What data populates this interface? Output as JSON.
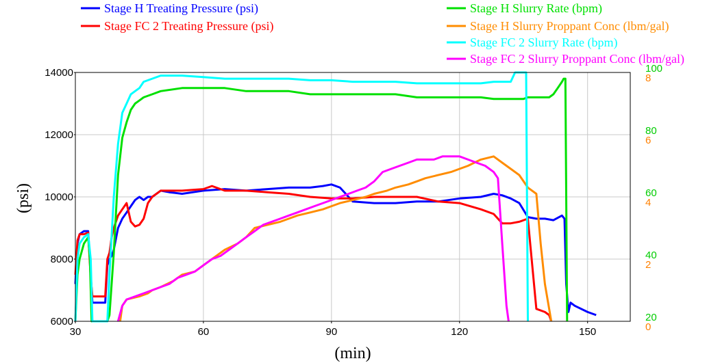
{
  "chart_data": {
    "type": "line",
    "title": "",
    "xlabel": "(min)",
    "ylabel": "(psi)",
    "xlim": [
      30,
      160
    ],
    "ylim": [
      6000,
      14000
    ],
    "grid": true,
    "legend_placement": "top",
    "x_ticks": [
      "30",
      "60",
      "90",
      "120",
      "150"
    ],
    "y_ticks": [
      "6000",
      "8000",
      "10000",
      "12000",
      "14000"
    ],
    "rate_axis": {
      "range": [
        20,
        100
      ],
      "ticks": [
        "20",
        "40",
        "60",
        "80",
        "100"
      ],
      "color": "#00cc00"
    },
    "conc_axis": {
      "range": [
        0,
        8
      ],
      "ticks": [
        "0",
        "2",
        "4",
        "6",
        "8"
      ],
      "color": "#ff8000"
    },
    "series": [
      {
        "name": "Stage H Treating Pressure (psi)",
        "color": "#0000ff",
        "axis": "pressure",
        "x": [
          30,
          30.5,
          31,
          32,
          33,
          33.6,
          34,
          35,
          36,
          37,
          37.5,
          38,
          38.5,
          39,
          40,
          41,
          42,
          43,
          44,
          45,
          46,
          47,
          48,
          50,
          52,
          55,
          60,
          65,
          70,
          75,
          80,
          85,
          88,
          90,
          92,
          95,
          100,
          105,
          110,
          115,
          120,
          125,
          128,
          130,
          132,
          134,
          136,
          138,
          140,
          142,
          144,
          144.6,
          145,
          145.5,
          146,
          147,
          150,
          152
        ],
        "y": [
          7200,
          8500,
          8800,
          8900,
          8900,
          7500,
          6600,
          6600,
          6600,
          6600,
          7800,
          8000,
          8100,
          8300,
          9000,
          9300,
          9500,
          9700,
          9900,
          10000,
          9900,
          10000,
          10000,
          10200,
          10150,
          10100,
          10200,
          10250,
          10200,
          10250,
          10300,
          10300,
          10350,
          10400,
          10300,
          9850,
          9800,
          9800,
          9850,
          9850,
          9950,
          10000,
          10100,
          10050,
          9950,
          9800,
          9350,
          9300,
          9300,
          9250,
          9400,
          9300,
          7200,
          6300,
          6600,
          6500,
          6300,
          6200
        ]
      },
      {
        "name": "Stage FC 2 Treating Pressure (psi)",
        "color": "#ff0000",
        "axis": "pressure",
        "x": [
          30,
          30.5,
          31,
          32,
          33,
          33.6,
          34,
          35,
          36,
          37,
          37.5,
          38,
          38.5,
          39,
          40,
          41,
          42,
          43,
          44,
          45,
          46,
          47,
          48,
          50,
          55,
          60,
          62,
          65,
          70,
          75,
          80,
          85,
          90,
          95,
          100,
          105,
          110,
          115,
          120,
          125,
          128,
          130,
          132,
          134,
          136,
          138,
          140,
          141,
          141.5
        ],
        "y": [
          7500,
          8600,
          8800,
          8800,
          8850,
          7400,
          6800,
          6800,
          6800,
          6800,
          8000,
          8200,
          8700,
          9000,
          9400,
          9600,
          9800,
          9200,
          9050,
          9100,
          9300,
          9800,
          10000,
          10200,
          10200,
          10250,
          10350,
          10200,
          10200,
          10150,
          10100,
          10000,
          9950,
          9950,
          10000,
          10000,
          10000,
          9850,
          9800,
          9600,
          9450,
          9150,
          9150,
          9200,
          9300,
          6400,
          6300,
          6200,
          6000
        ]
      },
      {
        "name": "Stage H Slurry Rate (bpm)",
        "color": "#00e000",
        "axis": "rate",
        "x": [
          30,
          30.5,
          31,
          32,
          33,
          33.4,
          33.8,
          37.5,
          38,
          39,
          40,
          41,
          42,
          43,
          44,
          45,
          46,
          48,
          50,
          55,
          60,
          65,
          70,
          75,
          80,
          85,
          90,
          95,
          100,
          105,
          110,
          115,
          120,
          125,
          128,
          130,
          132,
          134,
          135,
          136,
          137,
          138,
          140,
          141,
          142,
          143,
          144,
          144.4,
          144.8,
          145.2
        ],
        "y": [
          20,
          35,
          40,
          45,
          47,
          40,
          20,
          20,
          22,
          42,
          67,
          79,
          84,
          88,
          90,
          91,
          92,
          93,
          94,
          95,
          95,
          95,
          94,
          94,
          94,
          93,
          93,
          93,
          93,
          93,
          92,
          92,
          92,
          92,
          91.5,
          91.5,
          91.5,
          91.5,
          91.5,
          92,
          92,
          92,
          92,
          92,
          93,
          95,
          97,
          98,
          98,
          20
        ]
      },
      {
        "name": "Stage H Slurry Proppant Conc (lbm/gal)",
        "color": "#ff8c00",
        "axis": "conc",
        "x": [
          40.5,
          41,
          42,
          45,
          47,
          48,
          50,
          53,
          55,
          58,
          60,
          62,
          65,
          68,
          70,
          72,
          75,
          78,
          80,
          82,
          85,
          88,
          90,
          92,
          95,
          98,
          100,
          103,
          105,
          108,
          110,
          112,
          115,
          118,
          120,
          122,
          125,
          128,
          130,
          132,
          134,
          136,
          138,
          139,
          140,
          141,
          141.5
        ],
        "y": [
          0,
          0.5,
          0.7,
          0.8,
          0.9,
          1.0,
          1.1,
          1.3,
          1.5,
          1.6,
          1.8,
          2.0,
          2.3,
          2.5,
          2.7,
          3.0,
          3.1,
          3.2,
          3.3,
          3.4,
          3.5,
          3.6,
          3.7,
          3.8,
          3.9,
          4.0,
          4.1,
          4.2,
          4.3,
          4.4,
          4.5,
          4.6,
          4.7,
          4.8,
          4.9,
          5.0,
          5.2,
          5.3,
          5.1,
          4.9,
          4.7,
          4.3,
          4.1,
          2.5,
          1.2,
          0.4,
          0
        ]
      },
      {
        "name": "Stage FC 2 Slurry Rate (bpm)",
        "color": "#00ffff",
        "axis": "rate",
        "x": [
          30,
          30.5,
          31,
          32,
          33,
          33.6,
          34,
          37.5,
          38,
          39,
          40,
          41,
          42,
          43,
          44,
          45,
          46,
          48,
          50,
          55,
          60,
          65,
          70,
          75,
          80,
          85,
          90,
          95,
          100,
          105,
          110,
          115,
          120,
          125,
          128,
          130,
          132,
          133,
          134,
          135,
          135.6,
          136
        ],
        "y": [
          20,
          40,
          45,
          47,
          48,
          40,
          20,
          20,
          35,
          60,
          77,
          87,
          90,
          93,
          94,
          95,
          97,
          98,
          99,
          99,
          98.5,
          98,
          98,
          98,
          98,
          97.5,
          97.5,
          97,
          97,
          97,
          96.5,
          96.5,
          96.5,
          96.5,
          97,
          97,
          97,
          100,
          100,
          100,
          100,
          20
        ]
      },
      {
        "name": "Stage FC 2 Slurry Proppant Conc (lbm/gal)",
        "color": "#ff00ff",
        "axis": "conc",
        "x": [
          40,
          41,
          42,
          44,
          46,
          48,
          50,
          52,
          54,
          56,
          58,
          60,
          62,
          64,
          66,
          68,
          70,
          72,
          74,
          76,
          78,
          80,
          82,
          84,
          86,
          88,
          90,
          92,
          94,
          96,
          98,
          100,
          102,
          104,
          106,
          108,
          110,
          112,
          114,
          116,
          118,
          120,
          122,
          124,
          126,
          128,
          129,
          130,
          131,
          131.5
        ],
        "y": [
          0,
          0.5,
          0.7,
          0.8,
          0.9,
          1.0,
          1.1,
          1.2,
          1.4,
          1.5,
          1.6,
          1.8,
          2.0,
          2.1,
          2.3,
          2.5,
          2.7,
          2.9,
          3.1,
          3.2,
          3.3,
          3.4,
          3.5,
          3.6,
          3.7,
          3.8,
          3.9,
          4.0,
          4.1,
          4.2,
          4.3,
          4.5,
          4.8,
          4.9,
          5.0,
          5.1,
          5.2,
          5.2,
          5.2,
          5.3,
          5.3,
          5.3,
          5.2,
          5.1,
          5.0,
          4.8,
          4.6,
          2.5,
          0.5,
          0
        ]
      }
    ]
  }
}
